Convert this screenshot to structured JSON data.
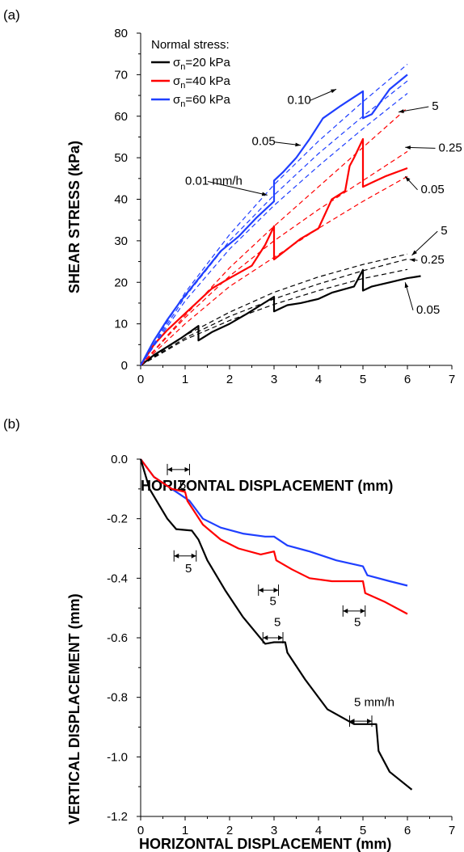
{
  "chart_data": [
    {
      "panel_label": "(a)",
      "type": "line",
      "xlabel": "HORIZONTAL DISPLACEMENT (mm)",
      "ylabel": "SHEAR STRESS (kPa)",
      "xlim": [
        0,
        7
      ],
      "ylim": [
        0,
        80
      ],
      "x_ticks": [
        "0",
        "1",
        "2",
        "3",
        "4",
        "5",
        "6",
        "7"
      ],
      "y_ticks": [
        "0",
        "10",
        "20",
        "30",
        "40",
        "50",
        "60",
        "70",
        "80"
      ],
      "legend": {
        "title": "Normal stress:",
        "placement": "top-left",
        "entries": [
          {
            "base": "σ",
            "sub": "n",
            "rest": "=20 kPa",
            "color": "#000000"
          },
          {
            "base": "σ",
            "sub": "n",
            "rest": "=40 kPa",
            "color": "#ff0000"
          },
          {
            "base": "σ",
            "sub": "n",
            "rest": "=60 kPa",
            "color": "#1f3fff"
          }
        ]
      },
      "series": [
        {
          "color": "#000000",
          "style": "solid",
          "x": [
            0,
            0.3,
            0.6,
            0.9,
            1.1,
            1.3,
            1.3,
            1.6,
            2.0,
            2.4,
            2.7,
            3.0,
            3.0,
            3.3,
            3.6,
            4.0,
            4.3,
            4.8,
            5.0,
            5.0,
            5.2,
            5.6,
            6.0,
            6.3
          ],
          "y": [
            0,
            2.5,
            4.5,
            6.5,
            8.0,
            9.5,
            6.0,
            8.0,
            10.0,
            12.5,
            14.5,
            16.5,
            13.0,
            14.5,
            15.0,
            16.0,
            17.5,
            19.0,
            23.0,
            18.0,
            19.0,
            20.0,
            21.0,
            21.5
          ]
        },
        {
          "color": "#ff0000",
          "style": "solid",
          "x": [
            0,
            0.3,
            0.6,
            1.0,
            1.3,
            1.6,
            2.0,
            2.5,
            2.8,
            3.0,
            3.0,
            3.3,
            3.6,
            4.0,
            4.3,
            4.6,
            4.7,
            4.8,
            5.0,
            5.0,
            5.2,
            5.5,
            6.0
          ],
          "y": [
            0,
            5.0,
            8.5,
            12.5,
            15.5,
            18.5,
            21.0,
            24.0,
            29.0,
            33.5,
            25.5,
            28.0,
            30.5,
            33.0,
            40.0,
            42.0,
            48.0,
            50.0,
            54.5,
            43.0,
            44.0,
            45.5,
            47.5
          ]
        },
        {
          "color": "#1f3fff",
          "style": "solid",
          "x": [
            0,
            0.3,
            0.6,
            0.9,
            1.2,
            1.5,
            1.8,
            2.2,
            2.6,
            3.0,
            3.0,
            3.2,
            3.5,
            3.8,
            4.1,
            4.5,
            5.0,
            5.0,
            5.2,
            5.6,
            6.0
          ],
          "y": [
            0,
            6.0,
            11.0,
            15.5,
            19.5,
            23.5,
            27.5,
            31.0,
            35.5,
            39.5,
            44.5,
            46.5,
            50.0,
            54.5,
            59.5,
            62.5,
            66.0,
            59.5,
            60.5,
            66.5,
            70.0
          ]
        },
        {
          "color": "#000000",
          "style": "dashed",
          "x": [
            0,
            1,
            2,
            3,
            4,
            5,
            6
          ],
          "y": [
            0,
            6.2,
            10.8,
            14.7,
            18.0,
            20.9,
            23.1
          ]
        },
        {
          "color": "#000000",
          "style": "dashed",
          "x": [
            0,
            1,
            2,
            3,
            4,
            5,
            6
          ],
          "y": [
            0,
            6.6,
            11.8,
            16.0,
            19.6,
            22.8,
            25.6
          ]
        },
        {
          "color": "#000000",
          "style": "dashed",
          "x": [
            0,
            1,
            2,
            3,
            4,
            5,
            6
          ],
          "y": [
            0,
            7.2,
            12.8,
            17.6,
            21.3,
            24.3,
            26.8
          ]
        },
        {
          "color": "#ff0000",
          "style": "dashed",
          "x": [
            0,
            1,
            2,
            3,
            4,
            5,
            6
          ],
          "y": [
            0,
            10.0,
            19.0,
            26.0,
            33.0,
            39.5,
            45.5
          ]
        },
        {
          "color": "#ff0000",
          "style": "dashed",
          "x": [
            0,
            1,
            2,
            3,
            4,
            5,
            6
          ],
          "y": [
            0,
            11.5,
            21.5,
            30.0,
            37.5,
            44.5,
            51.5
          ]
        },
        {
          "color": "#ff0000",
          "style": "dashed",
          "x": [
            0,
            1,
            2,
            3,
            4,
            5,
            6
          ],
          "y": [
            0,
            12.0,
            23.5,
            33.5,
            43.0,
            52.5,
            62.0
          ]
        },
        {
          "color": "#1f3fff",
          "style": "dashed",
          "x": [
            0,
            1,
            2,
            3,
            4,
            5,
            6
          ],
          "y": [
            0,
            15.5,
            28.0,
            38.5,
            48.0,
            57.0,
            65.5
          ]
        },
        {
          "color": "#1f3fff",
          "style": "dashed",
          "x": [
            0,
            1,
            2,
            3,
            4,
            5,
            6
          ],
          "y": [
            0,
            16.5,
            30.0,
            41.0,
            51.0,
            60.0,
            68.5
          ]
        },
        {
          "color": "#1f3fff",
          "style": "dashed",
          "x": [
            0,
            1,
            2,
            3,
            4,
            5,
            6
          ],
          "y": [
            0,
            17.5,
            31.5,
            43.5,
            54.0,
            63.5,
            72.5
          ]
        }
      ],
      "annotations": [
        {
          "text": "0.10",
          "x": 3.3,
          "y": 63.0,
          "to_x": 4.4,
          "to_y": 66.5
        },
        {
          "text": "0.05",
          "x": 2.5,
          "y": 53.0,
          "to_x": 3.6,
          "to_y": 53.0
        },
        {
          "text": "0.01 mm/h",
          "x": 1.0,
          "y": 43.5,
          "to_x": 2.85,
          "to_y": 41.0
        },
        {
          "text": "5",
          "x": 6.55,
          "y": 61.5,
          "to_x": 5.8,
          "to_y": 61.0
        },
        {
          "text": "0.25",
          "x": 6.7,
          "y": 51.5,
          "to_x": 5.95,
          "to_y": 52.5
        },
        {
          "text": "0.05",
          "x": 6.3,
          "y": 41.5,
          "to_x": 5.95,
          "to_y": 45.5
        },
        {
          "text": "5",
          "x": 6.75,
          "y": 31.5,
          "to_x": 6.1,
          "to_y": 26.5
        },
        {
          "text": "0.25",
          "x": 6.3,
          "y": 24.5,
          "to_x": 6.05,
          "to_y": 25.5
        },
        {
          "text": "0.05",
          "x": 6.2,
          "y": 12.5,
          "to_x": 5.95,
          "to_y": 20.0
        }
      ]
    },
    {
      "panel_label": "(b)",
      "type": "line",
      "xlabel": "HORIZONTAL DISPLACEMENT (mm)",
      "ylabel": "VERTICAL DISPLACEMENT (mm)",
      "xlim": [
        0,
        7
      ],
      "ylim": [
        -1.2,
        0.0
      ],
      "x_ticks": [
        "0",
        "1",
        "2",
        "3",
        "4",
        "5",
        "6",
        "7"
      ],
      "y_ticks": [
        "0.0",
        "-0.2",
        "-0.4",
        "-0.6",
        "-0.8",
        "-1.0",
        "-1.2"
      ],
      "series": [
        {
          "color": "#1f3fff",
          "x": [
            0,
            0.3,
            0.7,
            1.1,
            1.4,
            1.8,
            2.3,
            2.8,
            3.0,
            3.3,
            3.8,
            4.4,
            5.0,
            5.1,
            5.6,
            6.0
          ],
          "y": [
            0,
            -0.06,
            -0.1,
            -0.14,
            -0.2,
            -0.23,
            -0.25,
            -0.26,
            -0.26,
            -0.29,
            -0.31,
            -0.34,
            -0.36,
            -0.39,
            -0.41,
            -0.425
          ]
        },
        {
          "color": "#ff0000",
          "x": [
            0,
            0.3,
            0.7,
            1.0,
            1.05,
            1.4,
            1.8,
            2.2,
            2.7,
            3.0,
            3.05,
            3.4,
            3.8,
            4.3,
            5.0,
            5.05,
            5.5,
            6.0
          ],
          "y": [
            0,
            -0.06,
            -0.1,
            -0.11,
            -0.14,
            -0.22,
            -0.27,
            -0.3,
            -0.32,
            -0.31,
            -0.34,
            -0.37,
            -0.4,
            -0.41,
            -0.41,
            -0.45,
            -0.48,
            -0.52
          ]
        },
        {
          "color": "#000000",
          "x": [
            0,
            0.2,
            0.4,
            0.6,
            0.8,
            1.15,
            1.3,
            1.5,
            1.9,
            2.3,
            2.8,
            3.0,
            3.25,
            3.3,
            3.7,
            4.2,
            4.8,
            5.3,
            5.35,
            5.6,
            6.1
          ],
          "y": [
            0,
            -0.1,
            -0.15,
            -0.2,
            -0.235,
            -0.24,
            -0.27,
            -0.34,
            -0.44,
            -0.53,
            -0.62,
            -0.615,
            -0.615,
            -0.65,
            -0.74,
            -0.84,
            -0.89,
            -0.89,
            -0.98,
            -1.05,
            -1.11
          ]
        }
      ],
      "annotations": [
        {
          "text": "5",
          "x": 0.87,
          "y": -0.1,
          "bar_x": [
            0.6,
            1.1
          ],
          "bar_y": -0.035
        },
        {
          "text": "5",
          "x": 1.0,
          "y": -0.38,
          "bar_x": [
            0.75,
            1.25
          ],
          "bar_y": -0.325
        },
        {
          "text": "5",
          "x": 2.9,
          "y": -0.49,
          "bar_x": [
            2.65,
            3.1
          ],
          "bar_y": -0.44
        },
        {
          "text": "5",
          "x": 3.0,
          "y": -0.56,
          "bar_x": [
            2.75,
            3.2
          ],
          "bar_y": -0.6
        },
        {
          "text": "5",
          "x": 4.8,
          "y": -0.56,
          "bar_x": [
            4.55,
            5.05
          ],
          "bar_y": -0.51
        },
        {
          "text": "5 mm/h",
          "x": 4.8,
          "y": -0.83,
          "bar_x": [
            4.7,
            5.2
          ],
          "bar_y": -0.88
        }
      ]
    }
  ]
}
